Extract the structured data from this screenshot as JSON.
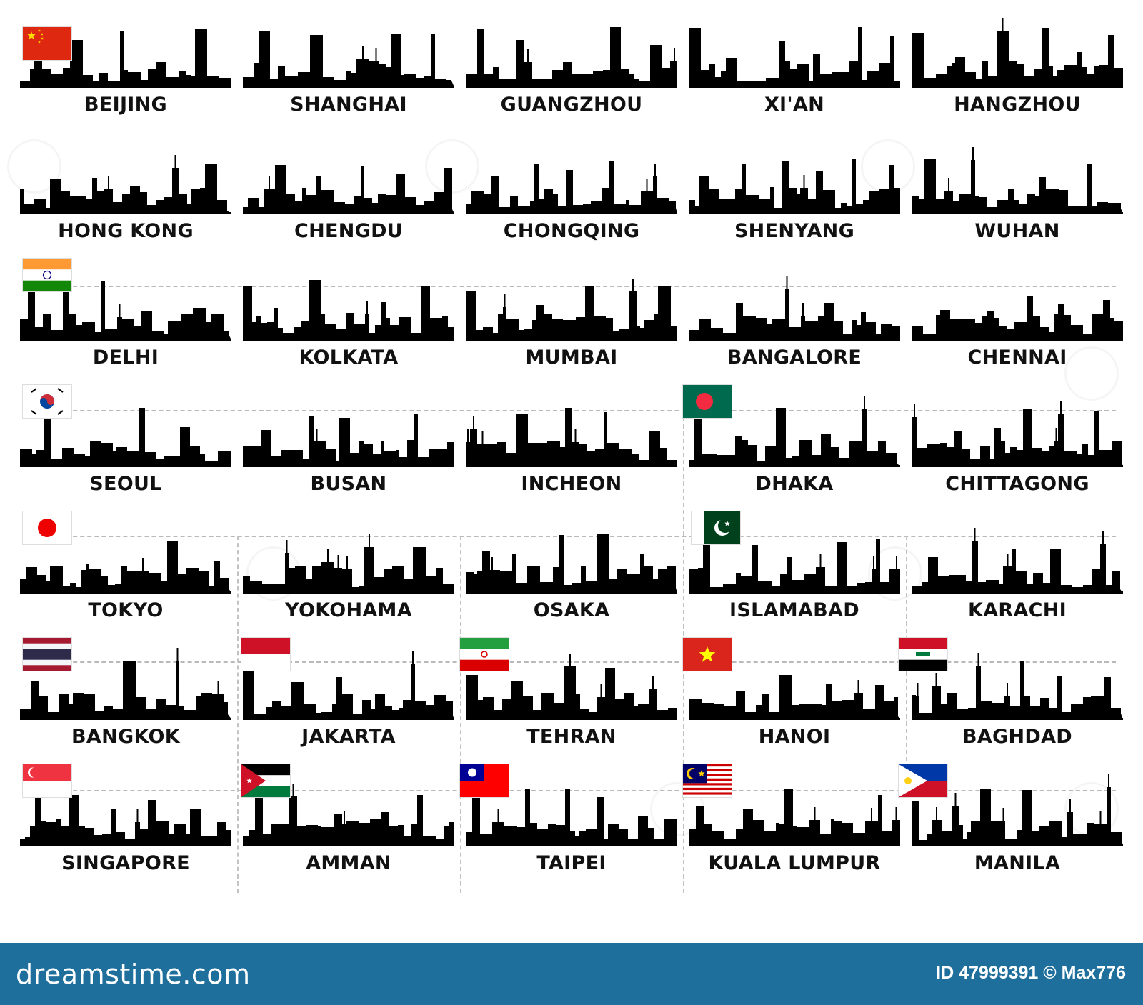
{
  "cities": [
    {
      "name": "BEIJING",
      "flag": "china"
    },
    {
      "name": "SHANGHAI",
      "flag": ""
    },
    {
      "name": "GUANGZHOU",
      "flag": ""
    },
    {
      "name": "XI'AN",
      "flag": ""
    },
    {
      "name": "HANGZHOU",
      "flag": ""
    },
    {
      "name": "HONG KONG",
      "flag": ""
    },
    {
      "name": "CHENGDU",
      "flag": ""
    },
    {
      "name": "CHONGQING",
      "flag": ""
    },
    {
      "name": "SHENYANG",
      "flag": ""
    },
    {
      "name": "WUHAN",
      "flag": ""
    },
    {
      "name": "DELHI",
      "flag": "india"
    },
    {
      "name": "KOLKATA",
      "flag": ""
    },
    {
      "name": "MUMBAI",
      "flag": ""
    },
    {
      "name": "BANGALORE",
      "flag": ""
    },
    {
      "name": "CHENNAI",
      "flag": ""
    },
    {
      "name": "SEOUL",
      "flag": "south-korea"
    },
    {
      "name": "BUSAN",
      "flag": ""
    },
    {
      "name": "INCHEON",
      "flag": ""
    },
    {
      "name": "DHAKA",
      "flag": "bangladesh"
    },
    {
      "name": "CHITTAGONG",
      "flag": ""
    },
    {
      "name": "TOKYO",
      "flag": "japan"
    },
    {
      "name": "YOKOHAMA",
      "flag": ""
    },
    {
      "name": "OSAKA",
      "flag": ""
    },
    {
      "name": "ISLAMABAD",
      "flag": "pakistan"
    },
    {
      "name": "KARACHI",
      "flag": ""
    },
    {
      "name": "BANGKOK",
      "flag": "thailand"
    },
    {
      "name": "JAKARTA",
      "flag": "indonesia"
    },
    {
      "name": "TEHRAN",
      "flag": "iran"
    },
    {
      "name": "HANOI",
      "flag": "vietnam"
    },
    {
      "name": "BAGHDAD",
      "flag": "iraq"
    },
    {
      "name": "SINGAPORE",
      "flag": "singapore"
    },
    {
      "name": "AMMAN",
      "flag": "jordan"
    },
    {
      "name": "TAIPEI",
      "flag": "taiwan"
    },
    {
      "name": "KUALA LUMPUR",
      "flag": "malaysia"
    },
    {
      "name": "MANILA",
      "flag": "philippines"
    }
  ],
  "footer": {
    "brand": "dreamstime.com",
    "credit": "ID 47999391 © Max776"
  },
  "colors": {
    "silhouette": "#000000",
    "footer_bg": "#1f6f9c",
    "divider": "#b9b9b9"
  }
}
